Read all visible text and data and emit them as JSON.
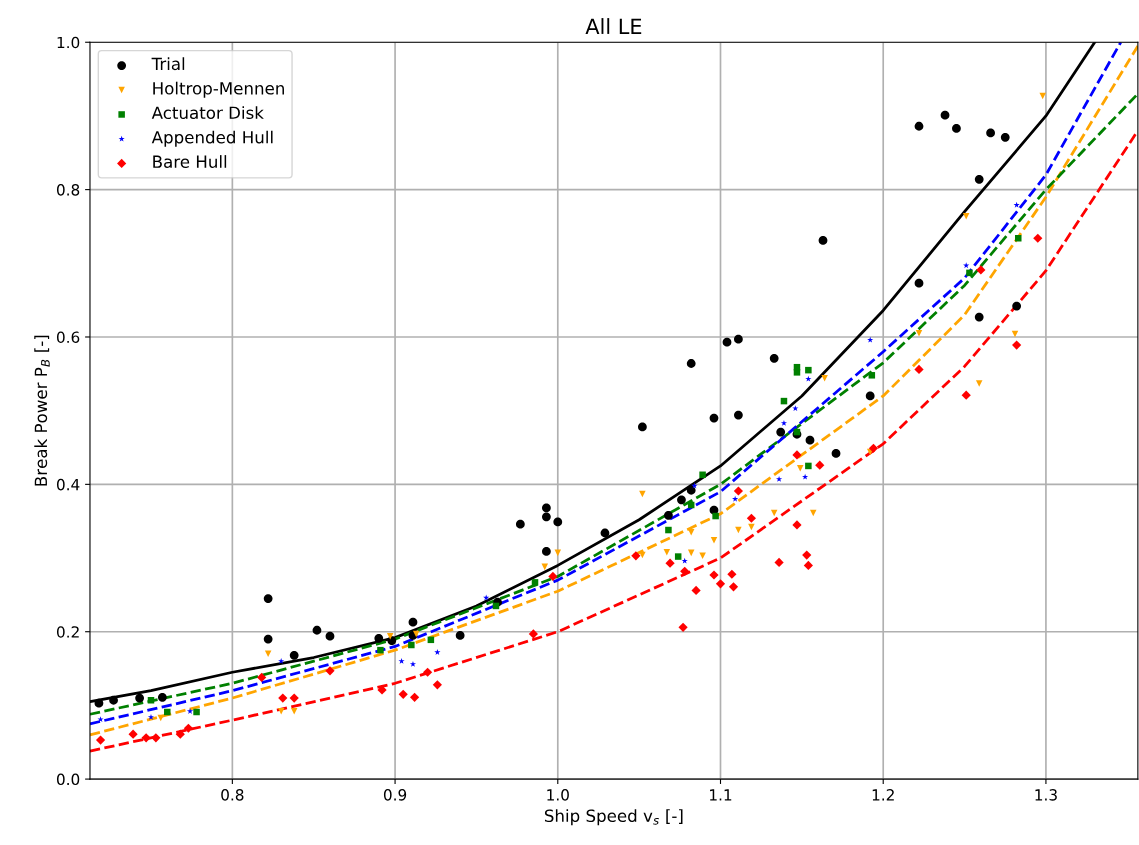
{
  "chart_data": {
    "type": "scatter",
    "title": "All LE",
    "xlabel": "Ship Speed v$_{s}$ [-]",
    "ylabel": "Break Power P$_{B}$ [-]",
    "xlim": [
      0.7125,
      1.3565
    ],
    "ylim": [
      0.0,
      1.0
    ],
    "xticks": [
      0.8,
      0.9,
      {
        "value": 1,
        "label": "1.0"
      },
      1.1,
      1.2,
      1.3
    ],
    "yticks": [
      {
        "value": 0,
        "label": "0.0"
      },
      0.2,
      0.4,
      0.6,
      0.8,
      {
        "value": 1,
        "label": "1.0"
      }
    ],
    "grid": true,
    "legend": "top left",
    "series": [
      {
        "name": "Trial",
        "color": "#000000",
        "marker": "circle",
        "x": [
          0.718,
          0.727,
          0.743,
          0.757,
          0.822,
          0.822,
          0.852,
          0.86,
          0.838,
          0.89,
          0.898,
          0.911,
          0.911,
          0.94,
          0.963,
          0.977,
          0.993,
          0.993,
          0.993,
          1.0,
          1.029,
          1.052,
          1.068,
          1.076,
          1.082,
          1.082,
          1.096,
          1.104,
          1.111,
          1.111,
          1.096,
          1.133,
          1.137,
          1.147,
          1.155,
          1.163,
          1.171,
          1.192,
          1.222,
          1.222,
          1.238,
          1.245,
          1.259,
          1.259,
          1.266,
          1.275,
          1.282
        ],
        "values": [
          0.103,
          0.107,
          0.11,
          0.111,
          0.245,
          0.19,
          0.202,
          0.194,
          0.168,
          0.191,
          0.188,
          0.213,
          0.195,
          0.195,
          0.24,
          0.346,
          0.368,
          0.356,
          0.309,
          0.349,
          0.334,
          0.478,
          0.358,
          0.379,
          0.564,
          0.392,
          0.49,
          0.593,
          0.597,
          0.494,
          0.365,
          0.571,
          0.471,
          0.468,
          0.46,
          0.731,
          0.442,
          0.52,
          0.673,
          0.886,
          0.901,
          0.883,
          0.814,
          0.627,
          0.877,
          0.871,
          0.642
        ]
      },
      {
        "name": "Holtrop-Mennen",
        "color": "#ffa500",
        "marker": "triangle",
        "x": [
          0.756,
          0.822,
          0.83,
          0.838,
          0.897,
          0.913,
          0.992,
          1.0,
          1.052,
          1.052,
          1.067,
          1.082,
          1.082,
          1.089,
          1.096,
          1.111,
          1.119,
          1.133,
          1.149,
          1.157,
          1.164,
          1.192,
          1.222,
          1.251,
          1.259,
          1.281,
          1.298
        ],
        "values": [
          0.083,
          0.17,
          0.092,
          0.092,
          0.194,
          0.197,
          0.288,
          0.307,
          0.387,
          0.304,
          0.308,
          0.335,
          0.307,
          0.303,
          0.324,
          0.338,
          0.342,
          0.361,
          0.422,
          0.361,
          0.544,
          0.444,
          0.605,
          0.764,
          0.537,
          0.604,
          0.927
        ]
      },
      {
        "name": "Actuator Disk",
        "color": "#008000",
        "marker": "square",
        "x": [
          0.75,
          0.76,
          0.778,
          0.891,
          0.91,
          0.922,
          0.962,
          0.986,
          1.068,
          1.074,
          1.082,
          1.089,
          1.097,
          1.139,
          1.147,
          1.147,
          1.154,
          1.154,
          1.147,
          1.193,
          1.253,
          1.283
        ],
        "values": [
          0.107,
          0.091,
          0.091,
          0.175,
          0.182,
          0.189,
          0.235,
          0.267,
          0.338,
          0.302,
          0.372,
          0.413,
          0.357,
          0.513,
          0.552,
          0.559,
          0.555,
          0.425,
          0.471,
          0.548,
          0.687,
          0.734
        ]
      },
      {
        "name": "Appended Hull",
        "color": "#0000ff",
        "marker": "star",
        "x": [
          0.719,
          0.75,
          0.774,
          0.83,
          0.904,
          0.911,
          0.926,
          0.956,
          1.078,
          1.084,
          1.109,
          1.139,
          1.146,
          1.154,
          1.136,
          1.152,
          1.192,
          1.251,
          1.282
        ],
        "values": [
          0.081,
          0.084,
          0.092,
          0.16,
          0.16,
          0.156,
          0.172,
          0.246,
          0.296,
          0.398,
          0.38,
          0.483,
          0.503,
          0.543,
          0.407,
          0.41,
          0.596,
          0.697,
          0.779
        ]
      },
      {
        "name": "Bare Hull",
        "color": "#ff0000",
        "marker": "diamond",
        "x": [
          0.719,
          0.739,
          0.747,
          0.753,
          0.768,
          0.773,
          0.818,
          0.831,
          0.838,
          0.86,
          0.892,
          0.905,
          0.912,
          0.92,
          0.926,
          0.985,
          0.997,
          1.048,
          1.069,
          1.077,
          1.078,
          1.085,
          1.096,
          1.1,
          1.107,
          1.108,
          1.111,
          1.119,
          1.136,
          1.147,
          1.147,
          1.153,
          1.154,
          1.161,
          1.194,
          1.222,
          1.251,
          1.26,
          1.282,
          1.295
        ],
        "values": [
          0.053,
          0.061,
          0.056,
          0.056,
          0.061,
          0.069,
          0.138,
          0.11,
          0.11,
          0.147,
          0.121,
          0.115,
          0.111,
          0.145,
          0.128,
          0.197,
          0.275,
          0.303,
          0.293,
          0.206,
          0.282,
          0.256,
          0.277,
          0.265,
          0.278,
          0.261,
          0.391,
          0.354,
          0.294,
          0.345,
          0.44,
          0.304,
          0.29,
          0.426,
          0.449,
          0.556,
          0.521,
          0.691,
          0.589,
          0.734
        ]
      },
      {
        "type": "line",
        "color": "#000000",
        "line_style": "solid",
        "x": [
          0.7125,
          0.75,
          0.8,
          0.85,
          0.9,
          0.95,
          1.0,
          1.05,
          1.1,
          1.15,
          1.2,
          1.25,
          1.3,
          1.33
        ],
        "values": [
          0.105,
          0.12,
          0.145,
          0.165,
          0.192,
          0.235,
          0.29,
          0.352,
          0.425,
          0.52,
          0.636,
          0.77,
          0.9,
          1.0
        ]
      },
      {
        "type": "line",
        "color": "#ffa500",
        "line_style": "dashed",
        "x": [
          0.7125,
          0.8,
          0.9,
          1.0,
          1.1,
          1.2,
          1.25,
          1.3,
          1.3565
        ],
        "values": [
          0.06,
          0.11,
          0.175,
          0.255,
          0.36,
          0.52,
          0.63,
          0.79,
          0.995
        ]
      },
      {
        "type": "line",
        "color": "#008000",
        "line_style": "dashed",
        "x": [
          0.7125,
          0.8,
          0.9,
          1.0,
          1.1,
          1.2,
          1.25,
          1.3,
          1.3565
        ],
        "values": [
          0.088,
          0.13,
          0.19,
          0.275,
          0.4,
          0.565,
          0.67,
          0.8,
          0.93
        ]
      },
      {
        "type": "line",
        "color": "#0000ff",
        "line_style": "dashed",
        "x": [
          0.7125,
          0.8,
          0.9,
          1.0,
          1.1,
          1.2,
          1.25,
          1.3,
          1.346
        ],
        "values": [
          0.075,
          0.12,
          0.18,
          0.27,
          0.39,
          0.58,
          0.68,
          0.82,
          1.0
        ]
      },
      {
        "type": "line",
        "color": "#ff0000",
        "line_style": "dashed",
        "x": [
          0.7125,
          0.8,
          0.9,
          1.0,
          1.1,
          1.2,
          1.25,
          1.3,
          1.3565
        ],
        "values": [
          0.038,
          0.08,
          0.13,
          0.2,
          0.3,
          0.455,
          0.56,
          0.69,
          0.88
        ]
      }
    ]
  }
}
